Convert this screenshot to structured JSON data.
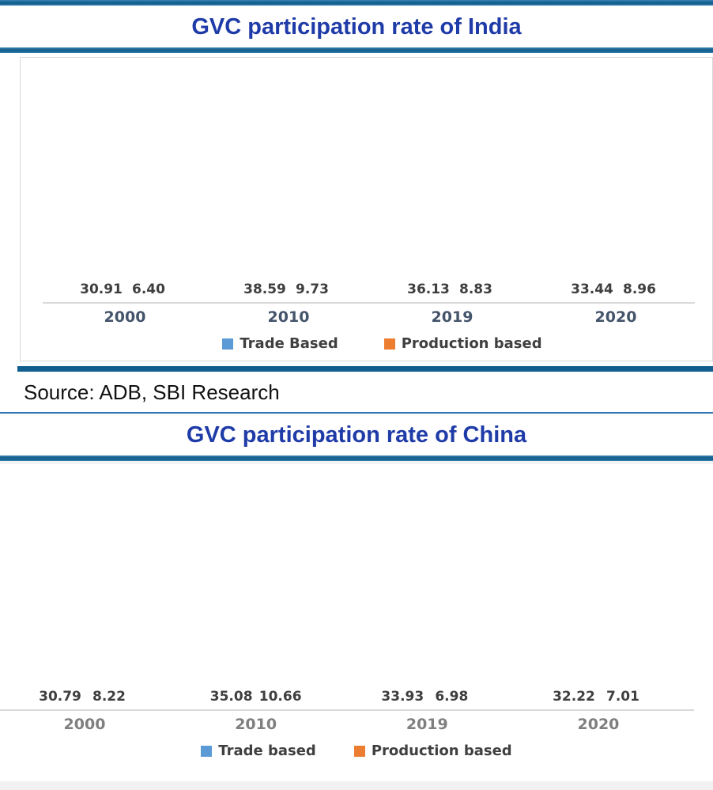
{
  "page": {
    "source": "Source: ADB, SBI Research"
  },
  "colors": {
    "trade_blue": "#5B9BD5",
    "production_orange": "#ED7D31",
    "title_navy": "#1F3BA8",
    "accent_line_blue": "#15618F",
    "axis_gray": "#D9D9D9"
  },
  "chart_data": [
    {
      "type": "bar",
      "title": "GVC participation rate of India",
      "categories": [
        "2000",
        "2010",
        "2019",
        "2020"
      ],
      "series": [
        {
          "name": "Trade Based",
          "color": "#5B9BD5",
          "values": [
            30.91,
            38.59,
            36.13,
            33.44
          ]
        },
        {
          "name": "Production based",
          "color": "#ED7D31",
          "values": [
            6.4,
            9.73,
            8.83,
            8.96
          ]
        }
      ],
      "ylim": [
        0,
        40
      ],
      "grid": false,
      "legend_position": "bottom",
      "data_labels": true
    },
    {
      "type": "bar",
      "title": "GVC participation rate of China",
      "categories": [
        "2000",
        "2010",
        "2019",
        "2020"
      ],
      "series": [
        {
          "name": "Trade based",
          "color": "#5B9BD5",
          "values": [
            30.79,
            35.08,
            33.93,
            32.22
          ]
        },
        {
          "name": "Production based",
          "color": "#ED7D31",
          "values": [
            8.22,
            10.66,
            6.98,
            7.01
          ]
        }
      ],
      "ylim": [
        0,
        37.5
      ],
      "grid": false,
      "legend_position": "bottom",
      "data_labels": true
    }
  ]
}
